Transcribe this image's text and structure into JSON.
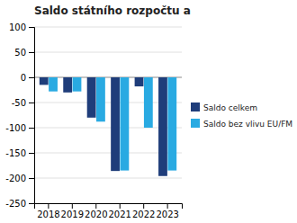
{
  "chart_data": {
    "type": "bar",
    "title": "Saldo státního rozpočtu a",
    "categories": [
      "2018",
      "2019",
      "2020",
      "2021",
      "2022",
      "2023"
    ],
    "series": [
      {
        "name": "Saldo celkem",
        "color": "#1f3d7a",
        "values": [
          -15,
          -30,
          -80,
          -186,
          -18,
          -196
        ]
      },
      {
        "name": "Saldo bez vlivu EU/FM",
        "color": "#29aae2",
        "values": [
          -28,
          -28,
          -88,
          -185,
          -100,
          -185
        ]
      }
    ],
    "ylim": [
      -250,
      100
    ],
    "yticks": [
      100,
      50,
      0,
      -50,
      -100,
      -150,
      -200,
      -250
    ],
    "grid": true,
    "legend": "right"
  }
}
